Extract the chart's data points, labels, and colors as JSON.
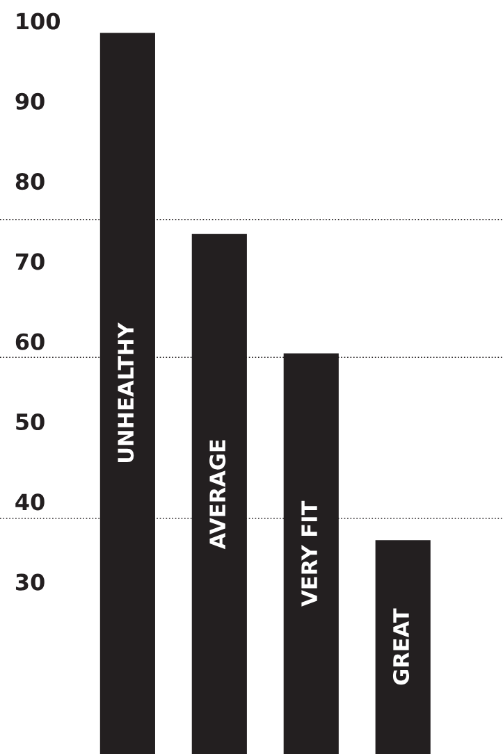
{
  "chart_data": {
    "type": "bar",
    "categories": [
      "UNHEALTHY",
      "AVERAGE",
      "VERY FIT",
      "GREAT"
    ],
    "values": [
      98.5,
      73.4,
      58.5,
      35.2
    ],
    "color": "#231f20",
    "ylim": [
      8.5,
      102.6
    ],
    "yticks": [
      30,
      40,
      50,
      60,
      70,
      80,
      90,
      100
    ],
    "ref_lines": [
      {
        "axis": "y",
        "value": 75.2,
        "line_style": "dotted",
        "color": "#231f20"
      },
      {
        "axis": "y",
        "value": 58.0,
        "line_style": "dotted",
        "color": "#231f20"
      },
      {
        "axis": "y",
        "value": 37.9,
        "line_style": "dotted",
        "color": "#231f20"
      }
    ],
    "grid": false,
    "legend": false
  }
}
